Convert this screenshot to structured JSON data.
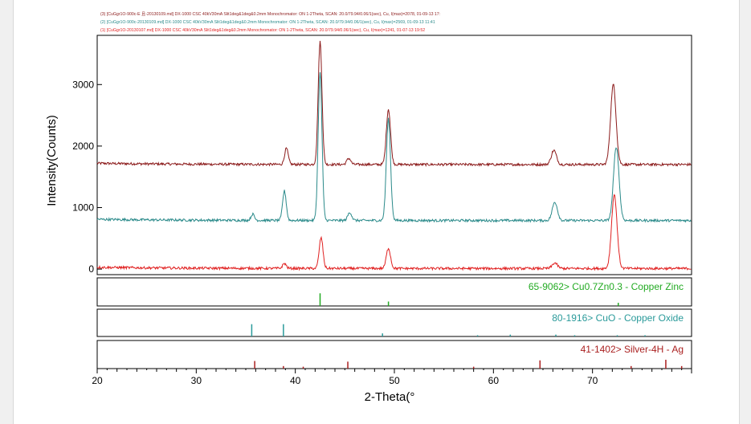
{
  "header_lines": [
    {
      "text": "(3) [CuGgr1O-900c-E 且-20130109.md] DX-1000 CSC 40kV30mA Slit1deg&1deg&0.2mm Monochromator: ON 1-2Theta, SCAN: 20.0/79.94/0.06/1(sec), Cu, I(max)=2078, 01-09-13 17:",
      "color": "#8b1a1a"
    },
    {
      "text": "(2) [CuGgr1O-900c-20130109.md] DX-1000 CSC 40kV30mA Slit1deg&1deg&0.2mm Monochromator: ON 1-2Theta, SCAN: 20.0/79.94/0.06/1(sec), Cu, I(max)=2569, 01-09-13 11:41",
      "color": "#2a8a8a"
    },
    {
      "text": "(1) [CuGgr1O-20130107.md] DX-1000 CSC 40kV30mA Slit1deg&1deg&0.2mm Monochromator: ON 1-2Theta, SCAN: 20.0/79.94/0.06/1(sec), Cu, I(max)=1241, 01-07-13 19:52",
      "color": "#e02020"
    }
  ],
  "chart_data": {
    "type": "line",
    "xlabel": "2-Theta(°",
    "ylabel": "Intensity(Counts)",
    "xlim": [
      20,
      80
    ],
    "ylim": [
      -90,
      3800
    ],
    "x_ticks": [
      20,
      30,
      40,
      50,
      60,
      70
    ],
    "y_ticks": [
      0,
      1000,
      2000,
      3000
    ],
    "series": [
      {
        "color": "#8b1a1a",
        "baseline": 1700,
        "peaks": [
          [
            39.1,
            260
          ],
          [
            42.5,
            2000
          ],
          [
            45.4,
            100
          ],
          [
            49.4,
            900
          ],
          [
            66.1,
            230
          ],
          [
            72.1,
            1300
          ]
        ]
      },
      {
        "color": "#2a8a8a",
        "baseline": 790,
        "peaks": [
          [
            35.7,
            100
          ],
          [
            38.9,
            480
          ],
          [
            42.5,
            2400
          ],
          [
            45.5,
            130
          ],
          [
            49.4,
            1650
          ],
          [
            66.2,
            300
          ],
          [
            72.4,
            1200
          ]
        ]
      },
      {
        "color": "#e02020",
        "baseline": 10,
        "peaks": [
          [
            38.9,
            80
          ],
          [
            42.6,
            500
          ],
          [
            49.4,
            330
          ],
          [
            66.2,
            90
          ],
          [
            72.2,
            1200
          ]
        ]
      }
    ],
    "reference_panels": [
      {
        "label": "65-9062> Cu0.7Zn0.3 - Copper Zinc",
        "color": "#22aa22",
        "lines": [
          [
            42.5,
            1.0
          ],
          [
            49.4,
            0.35
          ],
          [
            72.6,
            0.25
          ]
        ]
      },
      {
        "label": "80-1916> CuO - Copper Oxide",
        "color": "#2a9a9a",
        "lines": [
          [
            35.6,
            1.0
          ],
          [
            38.8,
            1.0
          ],
          [
            48.8,
            0.25
          ],
          [
            58.4,
            0.1
          ],
          [
            61.7,
            0.15
          ],
          [
            66.3,
            0.15
          ],
          [
            68.2,
            0.1
          ],
          [
            72.5,
            0.1
          ],
          [
            75.3,
            0.1
          ]
        ]
      },
      {
        "label": "41-1402> Silver-4H - Ag",
        "color": "#aa2020",
        "lines": [
          [
            35.9,
            0.6
          ],
          [
            38.8,
            0.2
          ],
          [
            40.8,
            0.15
          ],
          [
            45.3,
            0.55
          ],
          [
            58.0,
            0.15
          ],
          [
            64.7,
            0.65
          ],
          [
            73.9,
            0.2
          ],
          [
            77.4,
            0.7
          ],
          [
            79.0,
            0.2
          ]
        ]
      }
    ]
  }
}
